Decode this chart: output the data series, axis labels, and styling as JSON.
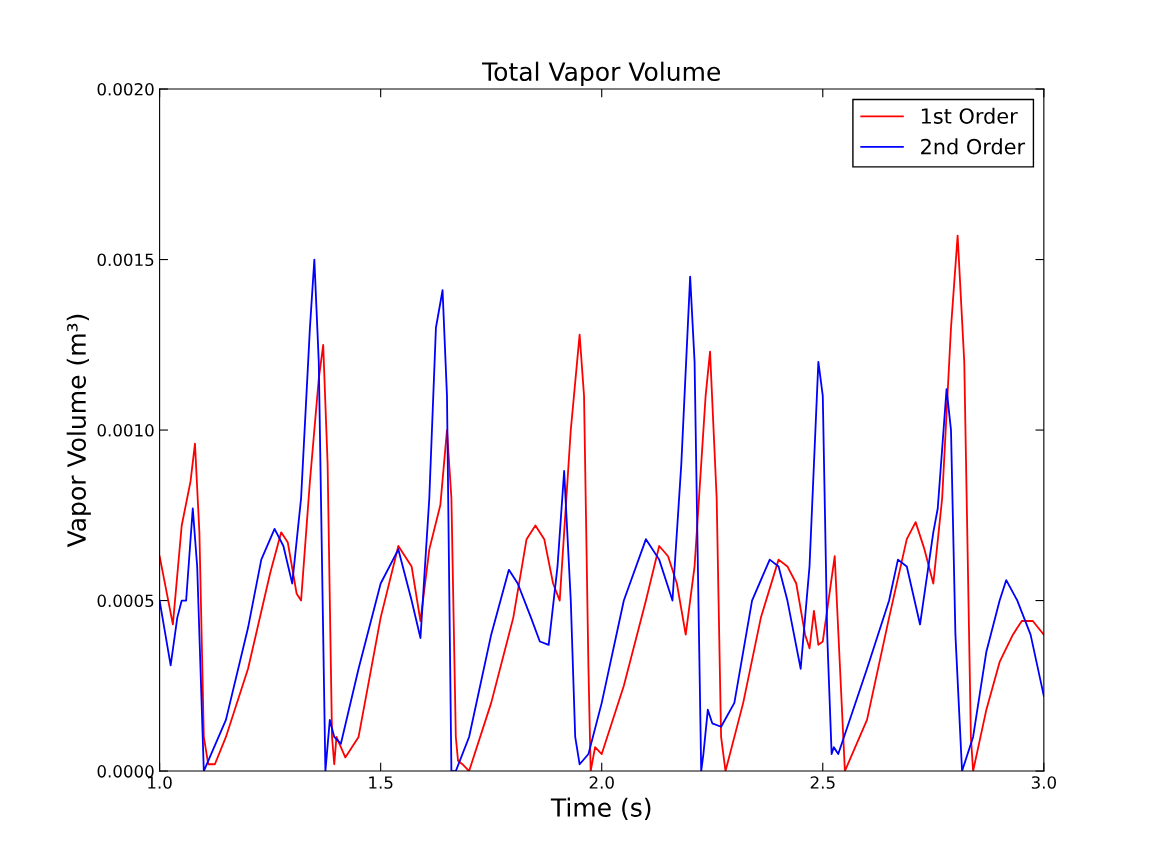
{
  "chart_data": {
    "type": "line",
    "title": "Total Vapor Volume",
    "xlabel": "Time (s)",
    "ylabel": "Vapor Volume (m³)",
    "xlim": [
      1.0,
      3.0
    ],
    "xticks": [
      {
        "value": 1.0,
        "label": "1.0"
      },
      1.5,
      {
        "value": 2.0,
        "label": "2.0"
      },
      2.5,
      {
        "value": 3.0,
        "label": "3.0"
      }
    ],
    "ylim": [
      0,
      0.002
    ],
    "yticks": [
      {
        "value": 0,
        "label": "0.0000"
      },
      {
        "value": 0.0005,
        "label": "0.0005"
      },
      {
        "value": 0.001,
        "label": "0.0010"
      },
      {
        "value": 0.0015,
        "label": "0.0015"
      },
      {
        "value": 0.002,
        "label": "0.0020"
      }
    ],
    "grid": false,
    "legend": "top right",
    "marker": "none",
    "line_style": "solid",
    "series": [
      {
        "name": "1st Order",
        "color": "#ff0000",
        "x": [
          1.0,
          1.03,
          1.05,
          1.07,
          1.08,
          1.09,
          1.1,
          1.11,
          1.125,
          1.15,
          1.2,
          1.25,
          1.275,
          1.29,
          1.31,
          1.32,
          1.34,
          1.36,
          1.37,
          1.38,
          1.39,
          1.395,
          1.4,
          1.42,
          1.45,
          1.5,
          1.54,
          1.57,
          1.59,
          1.61,
          1.635,
          1.65,
          1.66,
          1.67,
          1.675,
          1.685,
          1.7,
          1.75,
          1.8,
          1.83,
          1.85,
          1.87,
          1.89,
          1.905,
          1.93,
          1.95,
          1.96,
          1.97,
          1.975,
          1.985,
          2.0,
          2.05,
          2.1,
          2.13,
          2.15,
          2.17,
          2.19,
          2.21,
          2.235,
          2.245,
          2.26,
          2.27,
          2.28,
          2.32,
          2.36,
          2.4,
          2.42,
          2.44,
          2.46,
          2.47,
          2.48,
          2.49,
          2.5,
          2.527,
          2.55,
          2.6,
          2.65,
          2.69,
          2.71,
          2.73,
          2.75,
          2.77,
          2.79,
          2.805,
          2.82,
          2.835,
          2.84,
          2.87,
          2.9,
          2.93,
          2.95,
          2.975,
          3.0
        ],
        "values": [
          0.00063,
          0.00043,
          0.00072,
          0.00085,
          0.00096,
          0.0007,
          0.0001,
          2e-05,
          2e-05,
          0.0001,
          0.0003,
          0.00058,
          0.0007,
          0.00067,
          0.00052,
          0.0005,
          0.00085,
          0.00115,
          0.00125,
          0.0009,
          0.0001,
          2e-05,
          0.0001,
          4e-05,
          0.0001,
          0.00045,
          0.00066,
          0.0006,
          0.00044,
          0.00065,
          0.00078,
          0.001,
          0.0008,
          0.0001,
          3e-05,
          2e-05,
          0.0,
          0.0002,
          0.00045,
          0.00068,
          0.00072,
          0.00068,
          0.00055,
          0.0005,
          0.001,
          0.00128,
          0.0011,
          0.0003,
          0.0,
          7e-05,
          5e-05,
          0.00025,
          0.0005,
          0.00066,
          0.00063,
          0.00055,
          0.0004,
          0.0006,
          0.0011,
          0.00123,
          0.0008,
          0.0001,
          0.0,
          0.0002,
          0.00045,
          0.00062,
          0.0006,
          0.00055,
          0.0004,
          0.00036,
          0.00047,
          0.00037,
          0.00038,
          0.00063,
          0.0,
          0.00015,
          0.00045,
          0.00068,
          0.00073,
          0.00065,
          0.00055,
          0.0008,
          0.0013,
          0.00157,
          0.0012,
          0.0001,
          0.0,
          0.00018,
          0.00032,
          0.0004,
          0.00044,
          0.00044,
          0.0004
        ]
      },
      {
        "name": "2nd Order",
        "color": "#0000ff",
        "x": [
          1.0,
          1.025,
          1.04,
          1.05,
          1.06,
          1.075,
          1.085,
          1.095,
          1.1,
          1.15,
          1.2,
          1.23,
          1.26,
          1.28,
          1.3,
          1.32,
          1.34,
          1.35,
          1.36,
          1.375,
          1.385,
          1.395,
          1.41,
          1.45,
          1.5,
          1.54,
          1.57,
          1.59,
          1.61,
          1.625,
          1.64,
          1.65,
          1.66,
          1.67,
          1.7,
          1.75,
          1.79,
          1.81,
          1.84,
          1.86,
          1.88,
          1.9,
          1.915,
          1.93,
          1.94,
          1.95,
          1.97,
          2.0,
          2.05,
          2.1,
          2.13,
          2.16,
          2.18,
          2.2,
          2.21,
          2.22,
          2.225,
          2.23,
          2.24,
          2.25,
          2.27,
          2.3,
          2.34,
          2.38,
          2.4,
          2.42,
          2.45,
          2.47,
          2.49,
          2.5,
          2.51,
          2.52,
          2.525,
          2.535,
          2.6,
          2.65,
          2.67,
          2.69,
          2.72,
          2.75,
          2.76,
          2.78,
          2.79,
          2.8,
          2.815,
          2.84,
          2.87,
          2.9,
          2.915,
          2.94,
          2.97,
          3.0
        ],
        "values": [
          0.0005,
          0.00031,
          0.00045,
          0.0005,
          0.0005,
          0.00077,
          0.0006,
          0.0002,
          0.0,
          0.00015,
          0.00042,
          0.00062,
          0.00071,
          0.00066,
          0.00055,
          0.0008,
          0.0013,
          0.0015,
          0.0012,
          0.0,
          0.00015,
          0.0001,
          8e-05,
          0.0003,
          0.00055,
          0.00065,
          0.0005,
          0.00039,
          0.0008,
          0.0013,
          0.00141,
          0.0011,
          0.0,
          0.0,
          0.0001,
          0.0004,
          0.00059,
          0.00055,
          0.00045,
          0.00038,
          0.00037,
          0.0006,
          0.00088,
          0.0005,
          0.0001,
          2e-05,
          5e-05,
          0.0002,
          0.0005,
          0.00068,
          0.00062,
          0.0005,
          0.0009,
          0.00145,
          0.0012,
          0.0004,
          0.0,
          5e-05,
          0.00018,
          0.00014,
          0.00013,
          0.0002,
          0.0005,
          0.00062,
          0.0006,
          0.0005,
          0.0003,
          0.0006,
          0.0012,
          0.0011,
          0.0004,
          5e-05,
          7e-05,
          5e-05,
          0.0003,
          0.0005,
          0.00062,
          0.0006,
          0.00043,
          0.0007,
          0.00077,
          0.00112,
          0.001,
          0.0004,
          0.0,
          0.0001,
          0.00035,
          0.0005,
          0.00056,
          0.0005,
          0.0004,
          0.00022
        ]
      }
    ]
  }
}
